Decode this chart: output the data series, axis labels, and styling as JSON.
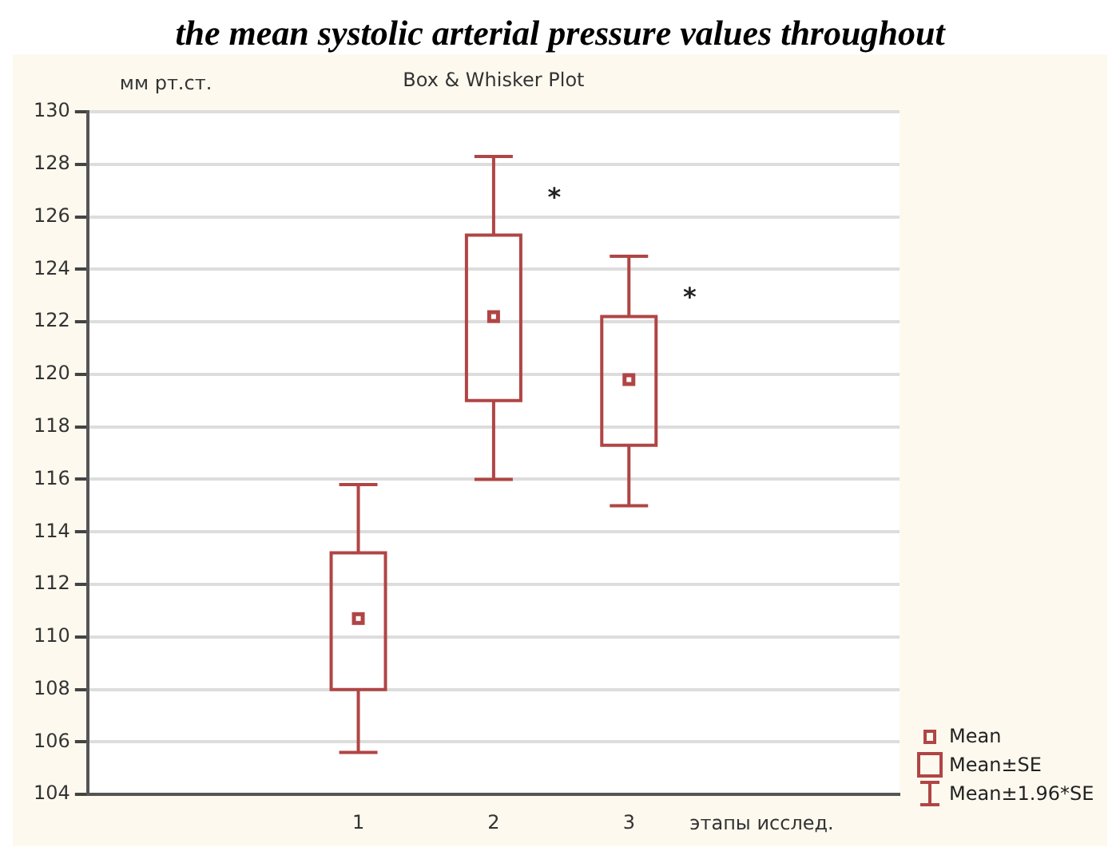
{
  "chart_data": {
    "type": "box",
    "title": "the mean systolic arterial pressure values throughout",
    "subtitle": "Box & Whisker Plot",
    "ylabel": "мм рт.ст.",
    "xlabel": "этапы исслед.",
    "categories": [
      null,
      null,
      "1",
      "2",
      "3",
      null,
      null
    ],
    "boxes": [
      null,
      null,
      {
        "low": 105.6,
        "q1": 108.0,
        "median": 110.7,
        "q3": 113.2,
        "high": 115.8
      },
      {
        "low": 116.0,
        "q1": 119.0,
        "median": 122.2,
        "q3": 125.3,
        "high": 128.3
      },
      {
        "low": 115.0,
        "q1": 117.3,
        "median": 119.8,
        "q3": 122.2,
        "high": 124.5
      },
      null,
      null
    ],
    "color": "#b04545",
    "ylim": [
      104,
      130
    ],
    "yticks": [
      104,
      106,
      108,
      110,
      112,
      114,
      116,
      118,
      120,
      122,
      124,
      126,
      128,
      130
    ],
    "grid": "y",
    "marker": "square",
    "annotations": [
      "Mean",
      "Mean±SE",
      "Mean±1.96*SE",
      "*",
      "*"
    ]
  }
}
